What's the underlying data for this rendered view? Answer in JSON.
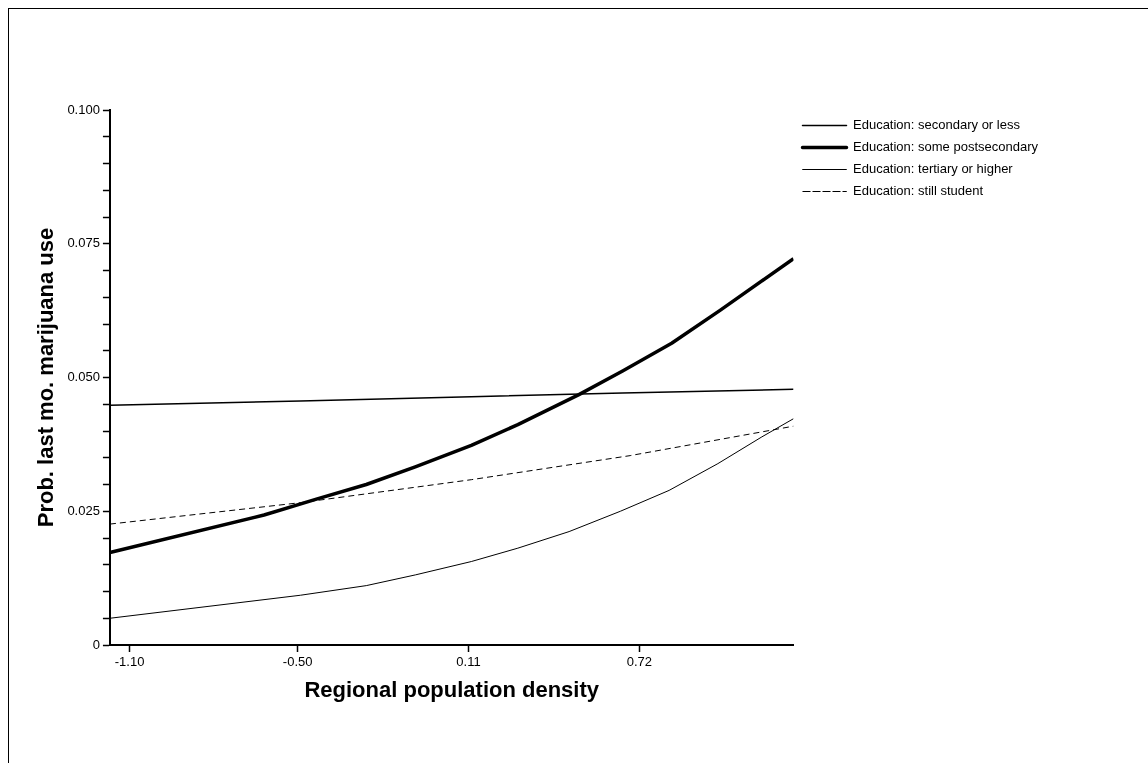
{
  "chart_data": {
    "type": "line",
    "xlabel": "Regional population density",
    "ylabel": "Prob. last mo. marijuana use",
    "xlim": [
      -1.17,
      1.27
    ],
    "ylim": [
      0,
      0.1
    ],
    "xticks": [
      {
        "value": -1.1,
        "label": "-1.10"
      },
      {
        "value": -0.5,
        "label": "-0.50"
      },
      0.11,
      0.72
    ],
    "yticks": [
      0,
      {
        "value": 0.005,
        "label": null
      },
      {
        "value": 0.01,
        "label": null
      },
      {
        "value": 0.015,
        "label": null
      },
      {
        "value": 0.02,
        "label": null
      },
      0.025,
      {
        "value": 0.03,
        "label": null
      },
      {
        "value": 0.035,
        "label": null
      },
      {
        "value": 0.04,
        "label": null
      },
      {
        "value": 0.045,
        "label": null
      },
      {
        "value": 0.05,
        "label": "0.050"
      },
      {
        "value": 0.055,
        "label": null
      },
      {
        "value": 0.06,
        "label": null
      },
      {
        "value": 0.065,
        "label": null
      },
      {
        "value": 0.07,
        "label": null
      },
      0.075,
      {
        "value": 0.08,
        "label": null
      },
      {
        "value": 0.085,
        "label": null
      },
      {
        "value": 0.09,
        "label": null
      },
      {
        "value": 0.095,
        "label": null
      },
      {
        "value": 0.1,
        "label": "0.100"
      }
    ],
    "grid": false,
    "legend": "top right",
    "marker": "none",
    "series": [
      {
        "name": "Education: secondary or less",
        "color": "#000000",
        "line_style": "solid",
        "x": [
          -1.17,
          -0.49,
          0.12,
          0.66,
          1.27
        ],
        "values": [
          0.0448,
          0.0456,
          0.0464,
          0.0471,
          0.0478
        ]
      },
      {
        "name": "Education: some postsecondary",
        "color": "#000000",
        "line_style": "solid",
        "x": [
          -1.17,
          -0.62,
          -0.43,
          -0.255,
          -0.08,
          0.12,
          0.286,
          0.504,
          0.66,
          0.835,
          1.009,
          1.27
        ],
        "values": [
          0.0173,
          0.0243,
          0.0273,
          0.03,
          0.0333,
          0.0373,
          0.0412,
          0.0468,
          0.0512,
          0.0564,
          0.0626,
          0.0722
        ]
      },
      {
        "name": "Education: tertiary or higher",
        "color": "#000000",
        "line_style": "solid",
        "x": [
          -1.17,
          -0.49,
          -0.255,
          -0.08,
          0.12,
          0.286,
          0.469,
          0.652,
          0.826,
          1.0,
          1.157,
          1.27
        ],
        "values": [
          0.005,
          0.0093,
          0.0111,
          0.0131,
          0.0156,
          0.0181,
          0.0212,
          0.025,
          0.0289,
          0.0339,
          0.0389,
          0.0423
        ]
      },
      {
        "name": "Education: still student",
        "color": "#000000",
        "line_style": "dashed",
        "x": [
          -1.17,
          -0.49,
          0.12,
          0.687,
          1.27
        ],
        "values": [
          0.0226,
          0.0266,
          0.0309,
          0.0354,
          0.0409
        ]
      }
    ]
  }
}
